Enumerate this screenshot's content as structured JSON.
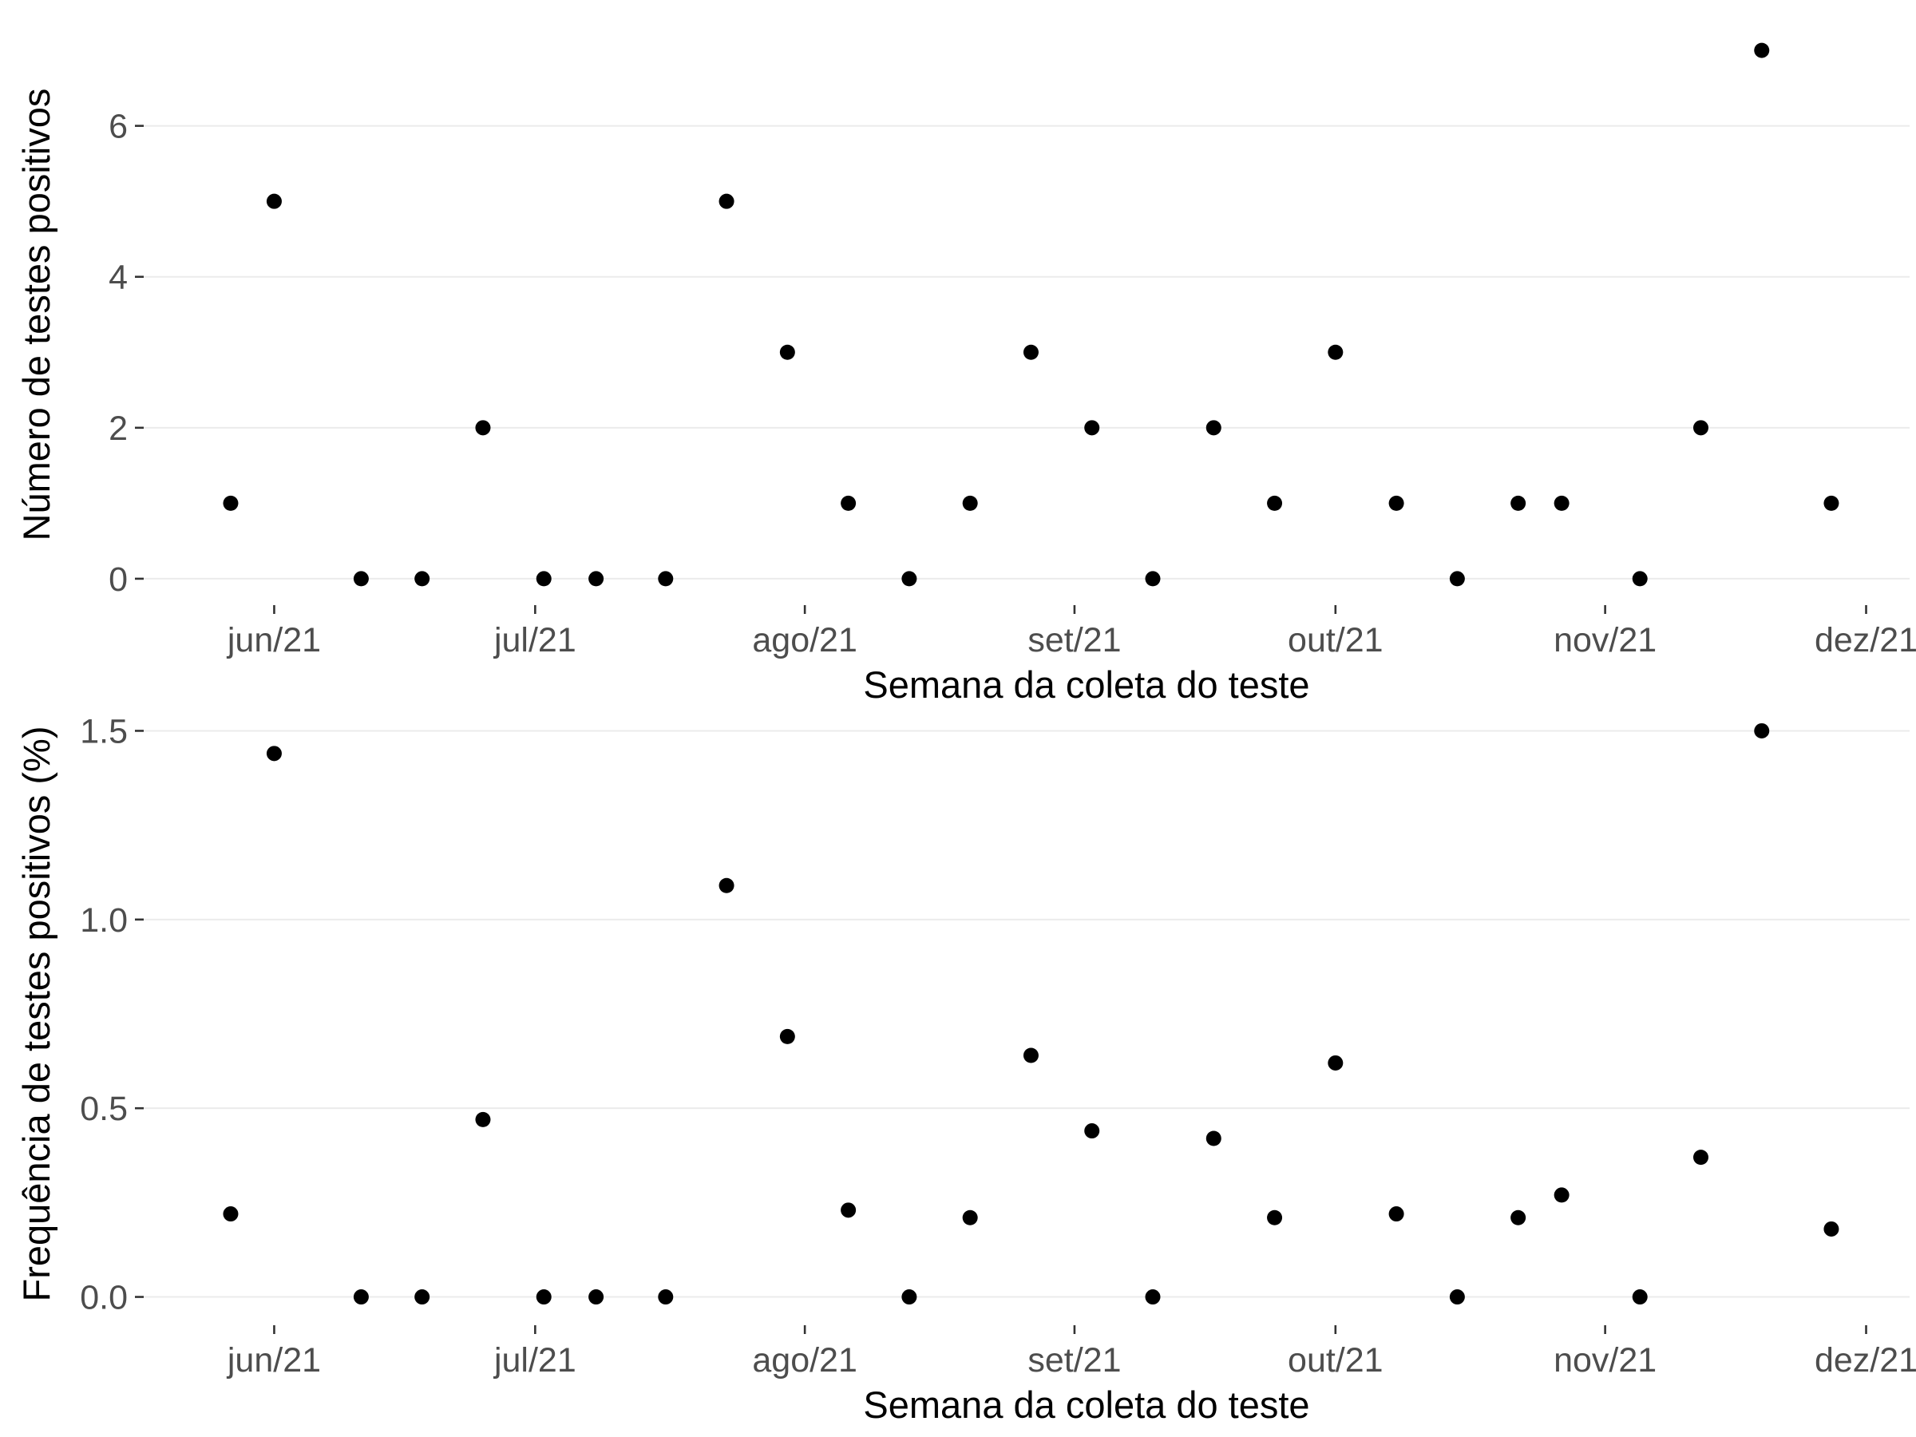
{
  "chart_data": [
    {
      "type": "scatter",
      "xlabel": "Semana da coleta do teste",
      "ylabel": "Número de testes positivos",
      "yticks": [
        "0",
        "2",
        "4",
        "6"
      ],
      "ytick_values": [
        0,
        2,
        4,
        6
      ],
      "xticks": [
        "jun/21",
        "jul/21",
        "ago/21",
        "set/21",
        "out/21",
        "nov/21",
        "dez/21"
      ],
      "xtick_dates": [
        "2021-06-01",
        "2021-07-01",
        "2021-08-01",
        "2021-09-01",
        "2021-10-01",
        "2021-11-01",
        "2021-12-01"
      ],
      "xlim": [
        "2021-05-17",
        "2021-12-06"
      ],
      "ylim": [
        -0.35,
        7.35
      ],
      "grid": true,
      "point_color": "#000000",
      "x": [
        "2021-05-27",
        "2021-06-01",
        "2021-06-11",
        "2021-06-18",
        "2021-06-25",
        "2021-07-02",
        "2021-07-08",
        "2021-07-16",
        "2021-07-23",
        "2021-07-30",
        "2021-08-06",
        "2021-08-13",
        "2021-08-20",
        "2021-08-27",
        "2021-09-03",
        "2021-09-10",
        "2021-09-17",
        "2021-09-24",
        "2021-10-01",
        "2021-10-08",
        "2021-10-15",
        "2021-10-22",
        "2021-10-27",
        "2021-11-05",
        "2021-11-12",
        "2021-11-19",
        "2021-11-27"
      ],
      "y": [
        1,
        5,
        0,
        0,
        2,
        0,
        0,
        0,
        5,
        3,
        1,
        0,
        1,
        3,
        2,
        0,
        2,
        1,
        3,
        1,
        0,
        1,
        1,
        0,
        2,
        7,
        1
      ]
    },
    {
      "type": "scatter",
      "xlabel": "Semana da coleta do teste",
      "ylabel": "Frequência de testes positivos (%)",
      "yticks": [
        "0.0",
        "0.5",
        "1.0",
        "1.5"
      ],
      "ytick_values": [
        0,
        0.5,
        1.0,
        1.5
      ],
      "xticks": [
        "jun/21",
        "jul/21",
        "ago/21",
        "set/21",
        "out/21",
        "nov/21",
        "dez/21"
      ],
      "xtick_dates": [
        "2021-06-01",
        "2021-07-01",
        "2021-08-01",
        "2021-09-01",
        "2021-10-01",
        "2021-11-01",
        "2021-12-01"
      ],
      "xlim": [
        "2021-05-17",
        "2021-12-06"
      ],
      "ylim": [
        -0.075,
        1.575
      ],
      "grid": true,
      "point_color": "#000000",
      "x": [
        "2021-05-27",
        "2021-06-01",
        "2021-06-11",
        "2021-06-18",
        "2021-06-25",
        "2021-07-02",
        "2021-07-08",
        "2021-07-16",
        "2021-07-23",
        "2021-07-30",
        "2021-08-06",
        "2021-08-13",
        "2021-08-20",
        "2021-08-27",
        "2021-09-03",
        "2021-09-10",
        "2021-09-17",
        "2021-09-24",
        "2021-10-01",
        "2021-10-08",
        "2021-10-15",
        "2021-10-22",
        "2021-10-27",
        "2021-11-05",
        "2021-11-12",
        "2021-11-19",
        "2021-11-27"
      ],
      "y": [
        0.22,
        1.44,
        0.0,
        0.0,
        0.47,
        0.0,
        0.0,
        0.0,
        1.09,
        0.69,
        0.23,
        0.0,
        0.21,
        0.64,
        0.44,
        0.0,
        0.42,
        0.21,
        0.62,
        0.22,
        0.0,
        0.21,
        0.27,
        0.0,
        0.37,
        1.5,
        0.18
      ]
    }
  ]
}
